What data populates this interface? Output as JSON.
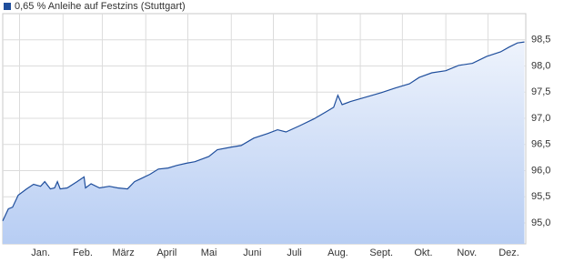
{
  "chart_data": {
    "type": "area",
    "xlim": [
      -12,
      361
    ],
    "ylim": [
      94.6,
      99.0
    ],
    "xticks": [
      {
        "value": 15,
        "label": "Jan."
      },
      {
        "value": 45,
        "label": "Feb."
      },
      {
        "value": 74,
        "label": "März"
      },
      {
        "value": 105,
        "label": "April"
      },
      {
        "value": 135,
        "label": "Mai"
      },
      {
        "value": 166,
        "label": "Juni"
      },
      {
        "value": 196,
        "label": "Juli"
      },
      {
        "value": 227,
        "label": "Aug."
      },
      {
        "value": 258,
        "label": "Sept."
      },
      {
        "value": 288,
        "label": "Okt."
      },
      {
        "value": 319,
        "label": "Nov."
      },
      {
        "value": 349,
        "label": "Dez."
      }
    ],
    "xgrid": [
      0,
      31,
      59,
      90,
      120,
      151,
      181,
      212,
      243,
      273,
      304,
      334
    ],
    "yticks": [
      {
        "value": 95.0,
        "label": "95,0"
      },
      {
        "value": 95.5,
        "label": "95,5"
      },
      {
        "value": 96.0,
        "label": "96,0"
      },
      {
        "value": 96.5,
        "label": "96,5"
      },
      {
        "value": 97.0,
        "label": "97,0"
      },
      {
        "value": 97.5,
        "label": "97,5"
      },
      {
        "value": 98.0,
        "label": "98,0"
      },
      {
        "value": 98.5,
        "label": "98,5"
      }
    ],
    "grid": true,
    "legend": "top-left",
    "x": [
      -12,
      -8,
      -5,
      -1,
      5,
      10,
      15,
      18,
      22,
      25,
      27,
      29,
      34,
      41,
      46,
      47,
      51,
      57,
      64,
      70,
      77,
      82,
      86,
      93,
      99,
      106,
      112,
      119,
      125,
      135,
      141,
      151,
      158,
      167,
      177,
      184,
      190,
      200,
      210,
      219,
      224,
      227,
      230,
      236,
      245,
      258,
      268,
      278,
      285,
      294,
      304,
      313,
      323,
      333,
      343,
      349,
      355,
      360
    ],
    "series": [
      {
        "name": "0,65 % Anleihe auf Festzins (Stuttgart)",
        "color": "#1f4e9c",
        "values": [
          95.04,
          95.27,
          95.3,
          95.53,
          95.65,
          95.74,
          95.7,
          95.79,
          95.65,
          95.67,
          95.79,
          95.65,
          95.67,
          95.79,
          95.88,
          95.67,
          95.75,
          95.67,
          95.7,
          95.67,
          95.65,
          95.79,
          95.84,
          95.93,
          96.03,
          96.05,
          96.1,
          96.14,
          96.17,
          96.27,
          96.4,
          96.45,
          96.48,
          96.62,
          96.71,
          96.78,
          96.74,
          96.86,
          96.99,
          97.13,
          97.21,
          97.44,
          97.26,
          97.32,
          97.39,
          97.49,
          97.58,
          97.66,
          97.78,
          97.87,
          97.91,
          98.01,
          98.05,
          98.18,
          98.27,
          98.36,
          98.44,
          98.46
        ]
      }
    ]
  }
}
